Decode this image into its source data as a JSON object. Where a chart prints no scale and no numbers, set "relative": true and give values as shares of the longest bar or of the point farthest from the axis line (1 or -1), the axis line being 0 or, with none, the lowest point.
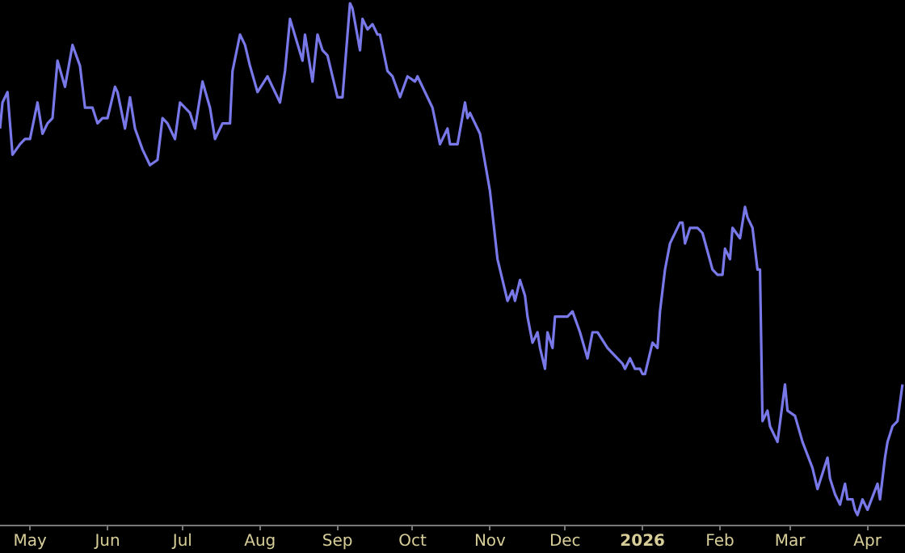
{
  "chart_data": {
    "type": "line",
    "relative": true,
    "marker": "none",
    "legend": false,
    "grid": false,
    "xlim": [
      "2025-04-19",
      "2026-04-16"
    ],
    "xticks": [
      {
        "value": "2025-05-01",
        "label": "May"
      },
      {
        "value": "2025-06-01",
        "label": "Jun"
      },
      {
        "value": "2025-07-01",
        "label": "Jul"
      },
      {
        "value": "2025-08-01",
        "label": "Aug"
      },
      {
        "value": "2025-09-01",
        "label": "Sep"
      },
      {
        "value": "2025-10-01",
        "label": "Oct"
      },
      {
        "value": "2025-11-01",
        "label": "Nov"
      },
      {
        "value": "2025-12-01",
        "label": "Dec"
      },
      {
        "value": "2026-01-01",
        "label": "2026"
      },
      {
        "value": "2026-02-01",
        "label": "Feb"
      },
      {
        "value": "2026-03-01",
        "label": "Mar"
      },
      {
        "value": "2026-04-01",
        "label": "Apr"
      }
    ],
    "series": [
      {
        "color": "#7878e8",
        "x": [
          "2025-04-19",
          "2025-04-20",
          "2025-04-22",
          "2025-04-24",
          "2025-04-27",
          "2025-04-29",
          "2025-05-01",
          "2025-05-04",
          "2025-05-06",
          "2025-05-08",
          "2025-05-10",
          "2025-05-12",
          "2025-05-15",
          "2025-05-18",
          "2025-05-21",
          "2025-05-23",
          "2025-05-26",
          "2025-05-28",
          "2025-05-30",
          "2025-06-01",
          "2025-06-04",
          "2025-06-05",
          "2025-06-08",
          "2025-06-10",
          "2025-06-12",
          "2025-06-15",
          "2025-06-18",
          "2025-06-21",
          "2025-06-23",
          "2025-06-25",
          "2025-06-28",
          "2025-06-30",
          "2025-07-04",
          "2025-07-06",
          "2025-07-09",
          "2025-07-12",
          "2025-07-14",
          "2025-07-17",
          "2025-07-20",
          "2025-07-21",
          "2025-07-24",
          "2025-07-26",
          "2025-07-28",
          "2025-07-31",
          "2025-08-04",
          "2025-08-07",
          "2025-08-09",
          "2025-08-11",
          "2025-08-13",
          "2025-08-18",
          "2025-08-19",
          "2025-08-22",
          "2025-08-24",
          "2025-08-26",
          "2025-08-28",
          "2025-09-01",
          "2025-09-03",
          "2025-09-06",
          "2025-09-07",
          "2025-09-10",
          "2025-09-11",
          "2025-09-13",
          "2025-09-15",
          "2025-09-17",
          "2025-09-18",
          "2025-09-21",
          "2025-09-23",
          "2025-09-26",
          "2025-09-29",
          "2025-10-02",
          "2025-10-03",
          "2025-10-09",
          "2025-10-12",
          "2025-10-15",
          "2025-10-16",
          "2025-10-19",
          "2025-10-22",
          "2025-10-23",
          "2025-10-24",
          "2025-10-27",
          "2025-10-28",
          "2025-11-01",
          "2025-11-04",
          "2025-11-05",
          "2025-11-08",
          "2025-11-10",
          "2025-11-11",
          "2025-11-13",
          "2025-11-15",
          "2025-11-16",
          "2025-11-18",
          "2025-11-20",
          "2025-11-21",
          "2025-11-23",
          "2025-11-24",
          "2025-11-26",
          "2025-11-27",
          "2025-11-29",
          "2025-12-02",
          "2025-12-04",
          "2025-12-07",
          "2025-12-10",
          "2025-12-12",
          "2025-12-14",
          "2025-12-18",
          "2025-12-20",
          "2025-12-22",
          "2025-12-24",
          "2025-12-25",
          "2025-12-27",
          "2025-12-29",
          "2025-12-31",
          "2026-01-01",
          "2026-01-02",
          "2026-01-05",
          "2026-01-07",
          "2026-01-08",
          "2026-01-10",
          "2026-01-12",
          "2026-01-16",
          "2026-01-17",
          "2026-01-18",
          "2026-01-20",
          "2026-01-22",
          "2026-01-23",
          "2026-01-25",
          "2026-01-29",
          "2026-01-31",
          "2026-02-02",
          "2026-02-03",
          "2026-02-05",
          "2026-02-06",
          "2026-02-09",
          "2026-02-11",
          "2026-02-12",
          "2026-02-14",
          "2026-02-16",
          "2026-02-17",
          "2026-02-18",
          "2026-02-20",
          "2026-02-21",
          "2026-02-22",
          "2026-02-24",
          "2026-02-27",
          "2026-02-28",
          "2026-03-03",
          "2026-03-06",
          "2026-03-10",
          "2026-03-12",
          "2026-03-14",
          "2026-03-16",
          "2026-03-17",
          "2026-03-19",
          "2026-03-21",
          "2026-03-23",
          "2026-03-24",
          "2026-03-26",
          "2026-03-27",
          "2026-03-28",
          "2026-03-30",
          "2026-04-01",
          "2026-04-05",
          "2026-04-06",
          "2026-04-08",
          "2026-04-09",
          "2026-04-11",
          "2026-04-13",
          "2026-04-15"
        ],
        "values": [
          0.76,
          0.81,
          0.83,
          0.71,
          0.73,
          0.74,
          0.74,
          0.81,
          0.75,
          0.77,
          0.78,
          0.89,
          0.84,
          0.92,
          0.88,
          0.8,
          0.8,
          0.77,
          0.78,
          0.78,
          0.84,
          0.83,
          0.76,
          0.82,
          0.76,
          0.72,
          0.69,
          0.7,
          0.78,
          0.77,
          0.74,
          0.81,
          0.79,
          0.76,
          0.85,
          0.8,
          0.74,
          0.77,
          0.77,
          0.87,
          0.94,
          0.92,
          0.88,
          0.83,
          0.86,
          0.83,
          0.81,
          0.87,
          0.97,
          0.89,
          0.94,
          0.85,
          0.94,
          0.91,
          0.9,
          0.82,
          0.82,
          1,
          0.99,
          0.91,
          0.97,
          0.95,
          0.96,
          0.94,
          0.94,
          0.87,
          0.86,
          0.82,
          0.86,
          0.85,
          0.86,
          0.8,
          0.73,
          0.76,
          0.73,
          0.73,
          0.81,
          0.78,
          0.79,
          0.76,
          0.75,
          0.64,
          0.51,
          0.49,
          0.43,
          0.45,
          0.43,
          0.47,
          0.44,
          0.4,
          0.35,
          0.37,
          0.34,
          0.3,
          0.37,
          0.34,
          0.4,
          0.4,
          0.4,
          0.41,
          0.37,
          0.32,
          0.37,
          0.37,
          0.34,
          0.33,
          0.32,
          0.31,
          0.3,
          0.32,
          0.3,
          0.3,
          0.29,
          0.29,
          0.35,
          0.34,
          0.41,
          0.49,
          0.54,
          0.58,
          0.58,
          0.54,
          0.57,
          0.57,
          0.57,
          0.56,
          0.49,
          0.48,
          0.48,
          0.53,
          0.51,
          0.57,
          0.55,
          0.61,
          0.59,
          0.57,
          0.49,
          0.49,
          0.2,
          0.22,
          0.19,
          0.18,
          0.16,
          0.27,
          0.22,
          0.21,
          0.16,
          0.11,
          0.07,
          0.1,
          0.13,
          0.09,
          0.06,
          0.04,
          0.08,
          0.05,
          0.05,
          0.03,
          0.02,
          0.05,
          0.03,
          0.08,
          0.05,
          0.13,
          0.16,
          0.19,
          0.2,
          0.27
        ]
      }
    ]
  }
}
